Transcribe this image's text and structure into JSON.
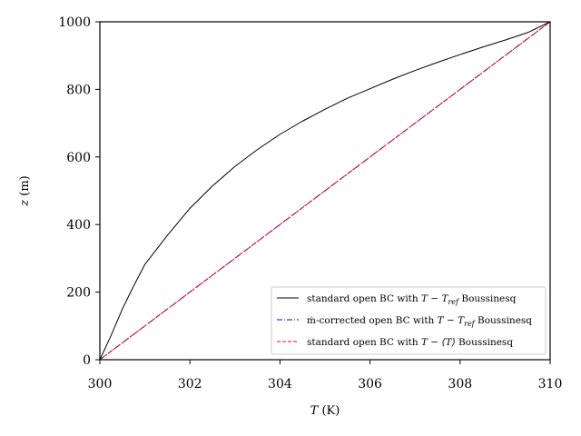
{
  "chart_data": {
    "type": "line",
    "xlabel_main": "T",
    "xlabel_unit": " (K)",
    "ylabel_main": "z",
    "ylabel_unit": " (m)",
    "xlim": [
      300,
      310
    ],
    "ylim": [
      0,
      1000
    ],
    "xticks": [
      "300",
      "302",
      "304",
      "306",
      "308",
      "310"
    ],
    "yticks": [
      "0",
      "200",
      "400",
      "600",
      "800",
      "1000"
    ],
    "grid": false,
    "legend_position": "lower-right",
    "series": [
      {
        "name": "standard open BC with T − T_ref Boussinesq",
        "color": "#000000",
        "style": "solid",
        "x": [
          300,
          300.25,
          300.5,
          300.75,
          301,
          301.5,
          302,
          302.5,
          303,
          303.5,
          304,
          304.5,
          305,
          305.5,
          306,
          306.5,
          307,
          307.5,
          308,
          308.5,
          309,
          309.5,
          310
        ],
        "y": [
          0,
          72,
          150,
          218,
          282,
          368,
          448,
          514,
          572,
          622,
          667,
          706,
          741,
          774,
          802,
          830,
          856,
          880,
          903,
          925,
          946,
          968,
          1000
        ]
      },
      {
        "name": "ṁ-corrected open BC with T − T_ref Boussinesq",
        "color": "#0000ff",
        "style": "dashdot",
        "x": [
          300,
          310
        ],
        "y": [
          0,
          1000
        ]
      },
      {
        "name": "standard open BC with T − ⟨T⟩ Boussinesq",
        "color": "#ff0000",
        "style": "dashed",
        "x": [
          300,
          310
        ],
        "y": [
          0,
          1000
        ]
      }
    ],
    "legend": [
      {
        "pre": "standard open BC with ",
        "sym": "T − T",
        "sub": "ref",
        "post": " Boussinesq"
      },
      {
        "pre": "ṁ-corrected open BC with ",
        "sym": "T − T",
        "sub": "ref",
        "post": " Boussinesq"
      },
      {
        "pre": "standard open BC with ",
        "sym": "T − ⟨T⟩",
        "sub": "",
        "post": " Boussinesq"
      }
    ]
  }
}
